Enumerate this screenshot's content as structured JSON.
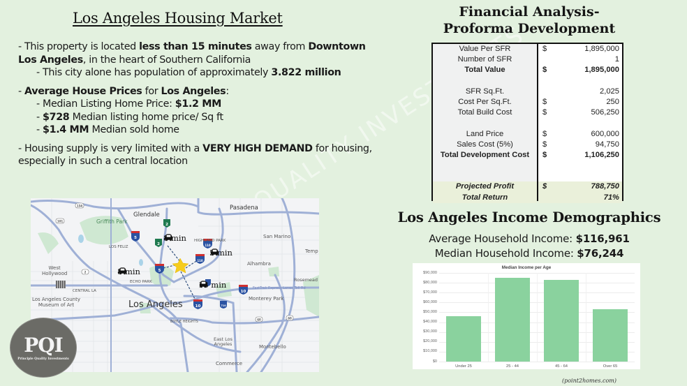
{
  "housing": {
    "title": "Los Angeles Housing Market",
    "b1_pre": "- This property is located ",
    "b1_bold1": "less than 15 minutes",
    "b1_mid": " away from ",
    "b1_bold2": "Downtown Los Angeles",
    "b1_post": ", in the heart of Southern California",
    "b2_pre": "- This city alone has  population of approximately ",
    "b2_bold": "3.822 million",
    "b3_pre": "- ",
    "b3_bold1": "Average House Prices",
    "b3_mid": " for ",
    "b3_bold2": "Los Angeles",
    "b3_post": ":",
    "b4_pre": "- Median Listing Home Price: ",
    "b4_bold": "$1.2 MM",
    "b5_pre": "- ",
    "b5_bold": "$728",
    "b5_post": " Median listing home price/ Sq ft",
    "b6_pre": "- ",
    "b6_bold": "$1.4 MM",
    "b6_post": " Median sold home",
    "b7_pre": "- Housing supply is very limited with a ",
    "b7_bold": "VERY HIGH DEMAND",
    "b7_post": " for housing, especially in such a central location"
  },
  "map": {
    "places": {
      "glendale": "Glendale",
      "pasadena": "Pasadena",
      "griffith_park": "Griffith Park",
      "los_feliz": "LOS FELIZ",
      "san_marino": "San Marino",
      "temple": "Temp",
      "highland_park": "HIGHLAND PARK",
      "alhambra": "Alhambra",
      "west_hollywood": "West\nHollywood",
      "echo_park": "ECHO PARK",
      "rosemead": "Rosemead",
      "central_la": "CENTRAL LA",
      "lacma": "Los Angeles County\nMuseum of Art",
      "los_angeles": "Los Angeles",
      "monterey_park": "Monterey Park",
      "boyle_heights": "BOYLE HEIGHTS",
      "east_la": "East Los\nAngeles",
      "montebello": "Montebello",
      "commerce": "Commerce",
      "fastrak": "FastTrak Express Lanes Toll Rd"
    },
    "drive_times": [
      {
        "label": "8 min",
        "icon": "car-icon"
      },
      {
        "label": "5 min",
        "icon": "car-icon"
      },
      {
        "label": "8 min",
        "icon": "car-icon"
      },
      {
        "label": "13 min",
        "icon": "car-icon"
      }
    ],
    "shields": {
      "i5": "5",
      "i10": "10",
      "i110": "110",
      "i710": "710",
      "ca2": "2",
      "us101": "101",
      "ca134": "134",
      "ca60": "60",
      "ca164": "164"
    }
  },
  "logo": {
    "mark": "PQI",
    "tagline": "Principle Quality Investments"
  },
  "watermark": "QUALITY INVESTMENTS",
  "financial": {
    "title_line1": "Financial Analysis-",
    "title_line2": "Proforma Development",
    "rows": [
      {
        "label": "Value Per SFR",
        "cur": "$",
        "value": "1,895,000",
        "style": ""
      },
      {
        "label": "Number of SFR",
        "cur": "",
        "value": "1",
        "style": ""
      },
      {
        "label": "Total Value",
        "cur": "$",
        "value": "1,895,000",
        "style": "bold"
      },
      {
        "label": "",
        "cur": "",
        "value": "",
        "style": "blank"
      },
      {
        "label": "SFR Sq.Ft.",
        "cur": "",
        "value": "2,025",
        "style": ""
      },
      {
        "label": "Cost Per Sq.Ft.",
        "cur": "$",
        "value": "250",
        "style": ""
      },
      {
        "label": "Total Build Cost",
        "cur": "$",
        "value": "506,250",
        "style": ""
      },
      {
        "label": "",
        "cur": "",
        "value": "",
        "style": "blank"
      },
      {
        "label": "Land Price",
        "cur": "$",
        "value": "600,000",
        "style": ""
      },
      {
        "label": "Sales Cost (5%)",
        "cur": "$",
        "value": "94,750",
        "style": ""
      },
      {
        "label": "Total Development Cost",
        "cur": "$",
        "value": "1,106,250",
        "style": "bold"
      },
      {
        "label": "Projected Profit",
        "cur": "$",
        "value": "788,750",
        "style": "ital"
      },
      {
        "label": "Total Return",
        "cur": "",
        "value": "71%",
        "style": "ital"
      }
    ]
  },
  "income": {
    "title": "Los Angeles Income Demographics",
    "avg_label": "Average Household Income: ",
    "avg_value": "$116,961",
    "median_label": "Median Household Income: ",
    "median_value": "$76,244",
    "source": "(point2homes.com)"
  },
  "chart_data": {
    "type": "bar",
    "title": "Median Income per Age",
    "categories": [
      "Under 25",
      "25 - 44",
      "45 - 64",
      "Over 65"
    ],
    "values": [
      46000,
      85000,
      83000,
      53500
    ],
    "xlabel": "",
    "ylabel": "",
    "ylim": [
      0,
      90000
    ],
    "yticks": [
      "$90,000",
      "$80,000",
      "$70,000",
      "$60,000",
      "$50,000",
      "$40,000",
      "$30,000",
      "$20,000",
      "$10,000",
      "$0"
    ],
    "grid": true,
    "legend": "none",
    "bar_color": "#8ad29e"
  }
}
